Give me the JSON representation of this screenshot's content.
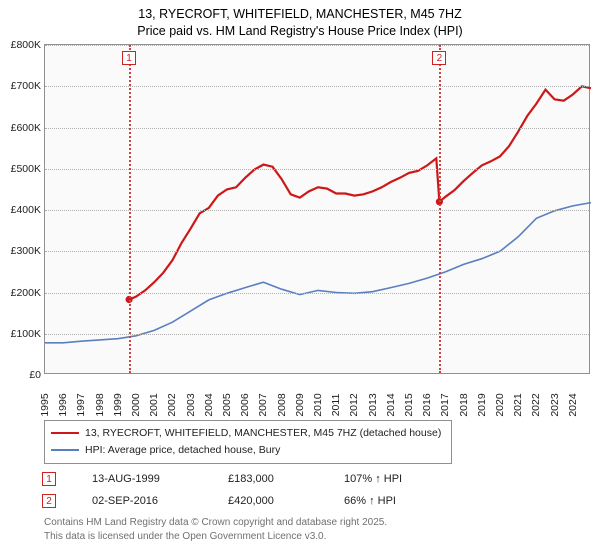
{
  "title": {
    "line1": "13, RYECROFT, WHITEFIELD, MANCHESTER, M45 7HZ",
    "line2": "Price paid vs. HM Land Registry's House Price Index (HPI)",
    "fontsize": 12.5,
    "color": "#000000"
  },
  "chart": {
    "type": "line",
    "background_color": "#fafafa",
    "border_color": "#909090",
    "grid_color": "#b0b0b0",
    "x": {
      "min": 1995,
      "max": 2025,
      "tick_step": 1,
      "labels": [
        "1995",
        "1996",
        "1997",
        "1998",
        "1999",
        "2000",
        "2001",
        "2002",
        "2003",
        "2004",
        "2005",
        "2006",
        "2007",
        "2008",
        "2009",
        "2010",
        "2011",
        "2012",
        "2013",
        "2014",
        "2015",
        "2016",
        "2017",
        "2018",
        "2019",
        "2020",
        "2021",
        "2022",
        "2023",
        "2024"
      ]
    },
    "y": {
      "min": 0,
      "max": 800000,
      "tick_step": 100000,
      "labels": [
        "£0",
        "£100K",
        "£200K",
        "£300K",
        "£400K",
        "£500K",
        "£600K",
        "£700K",
        "£800K"
      ]
    },
    "vlines": [
      {
        "x": 1999.62,
        "label": "1",
        "color": "#d04040"
      },
      {
        "x": 2016.67,
        "label": "2",
        "color": "#d04040"
      }
    ],
    "markers": [
      {
        "x": 1999.62,
        "y": 183000,
        "color": "#cc1818",
        "size": 3.6
      },
      {
        "x": 2016.67,
        "y": 420000,
        "color": "#cc1818",
        "size": 3.6
      }
    ],
    "series": [
      {
        "name": "property",
        "label": "13, RYECROFT, WHITEFIELD, MANCHESTER, M45 7HZ (detached house)",
        "color": "#cc1818",
        "stroke_width": 2.2,
        "points": [
          [
            1999.62,
            183000
          ],
          [
            2000,
            190000
          ],
          [
            2000.5,
            205000
          ],
          [
            2001,
            225000
          ],
          [
            2001.5,
            248000
          ],
          [
            2002,
            278000
          ],
          [
            2002.5,
            320000
          ],
          [
            2003,
            355000
          ],
          [
            2003.5,
            392000
          ],
          [
            2004,
            405000
          ],
          [
            2004.5,
            435000
          ],
          [
            2005,
            450000
          ],
          [
            2005.5,
            455000
          ],
          [
            2006,
            478000
          ],
          [
            2006.5,
            498000
          ],
          [
            2007,
            510000
          ],
          [
            2007.5,
            505000
          ],
          [
            2008,
            475000
          ],
          [
            2008.5,
            438000
          ],
          [
            2009,
            430000
          ],
          [
            2009.5,
            445000
          ],
          [
            2010,
            455000
          ],
          [
            2010.5,
            452000
          ],
          [
            2011,
            440000
          ],
          [
            2011.5,
            440000
          ],
          [
            2012,
            435000
          ],
          [
            2012.5,
            438000
          ],
          [
            2013,
            445000
          ],
          [
            2013.5,
            455000
          ],
          [
            2014,
            468000
          ],
          [
            2014.5,
            478000
          ],
          [
            2015,
            490000
          ],
          [
            2015.5,
            495000
          ],
          [
            2016,
            508000
          ],
          [
            2016.5,
            525000
          ],
          [
            2016.67,
            420000
          ],
          [
            2017,
            432000
          ],
          [
            2017.5,
            448000
          ],
          [
            2018,
            470000
          ],
          [
            2018.5,
            490000
          ],
          [
            2019,
            508000
          ],
          [
            2019.5,
            518000
          ],
          [
            2020,
            530000
          ],
          [
            2020.5,
            555000
          ],
          [
            2021,
            590000
          ],
          [
            2021.5,
            628000
          ],
          [
            2022,
            658000
          ],
          [
            2022.5,
            692000
          ],
          [
            2023,
            668000
          ],
          [
            2023.5,
            665000
          ],
          [
            2024,
            680000
          ],
          [
            2024.5,
            700000
          ],
          [
            2025,
            695000
          ]
        ]
      },
      {
        "name": "hpi",
        "label": "HPI: Average price, detached house, Bury",
        "color": "#5a7fbf",
        "stroke_width": 1.6,
        "points": [
          [
            1995,
            78000
          ],
          [
            1996,
            78000
          ],
          [
            1997,
            82000
          ],
          [
            1998,
            85000
          ],
          [
            1999,
            88000
          ],
          [
            2000,
            95000
          ],
          [
            2001,
            108000
          ],
          [
            2002,
            128000
          ],
          [
            2003,
            155000
          ],
          [
            2004,
            182000
          ],
          [
            2005,
            198000
          ],
          [
            2006,
            212000
          ],
          [
            2007,
            225000
          ],
          [
            2008,
            208000
          ],
          [
            2009,
            195000
          ],
          [
            2010,
            205000
          ],
          [
            2011,
            200000
          ],
          [
            2012,
            198000
          ],
          [
            2013,
            202000
          ],
          [
            2014,
            212000
          ],
          [
            2015,
            222000
          ],
          [
            2016,
            235000
          ],
          [
            2017,
            250000
          ],
          [
            2018,
            268000
          ],
          [
            2019,
            282000
          ],
          [
            2020,
            300000
          ],
          [
            2021,
            335000
          ],
          [
            2022,
            380000
          ],
          [
            2023,
            398000
          ],
          [
            2024,
            410000
          ],
          [
            2025,
            418000
          ]
        ]
      }
    ]
  },
  "legend": {
    "border_color": "#909090",
    "fontsize": 10.5,
    "items": [
      {
        "color": "#cc1818",
        "label": "13, RYECROFT, WHITEFIELD, MANCHESTER, M45 7HZ (detached house)"
      },
      {
        "color": "#5a7fbf",
        "label": "HPI: Average price, detached house, Bury"
      }
    ]
  },
  "events": [
    {
      "badge": "1",
      "date": "13-AUG-1999",
      "price": "£183,000",
      "hpi_delta": "107% ↑ HPI"
    },
    {
      "badge": "2",
      "date": "02-SEP-2016",
      "price": "£420,000",
      "hpi_delta": "66% ↑ HPI"
    }
  ],
  "footnote": {
    "line1": "Contains HM Land Registry data © Crown copyright and database right 2025.",
    "line2": "This data is licensed under the Open Government Licence v3.0.",
    "color": "#707070",
    "fontsize": 10
  }
}
